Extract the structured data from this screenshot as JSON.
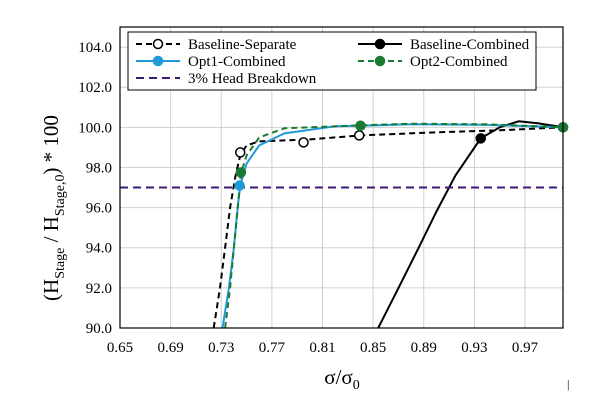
{
  "chart_data": {
    "type": "line",
    "xlim": [
      0.65,
      1.0
    ],
    "ylim": [
      90.0,
      105.0
    ],
    "x_ticks": [
      "0.65",
      "0.69",
      "0.73",
      "0.77",
      "0.81",
      "0.85",
      "0.89",
      "0.93",
      "0.97"
    ],
    "y_ticks": [
      "90.0",
      "92.0",
      "94.0",
      "96.0",
      "98.0",
      "100.0",
      "102.0",
      "104.0"
    ],
    "ylabel": {
      "main": "(H",
      "sub1": "Stage",
      "mid": " / H",
      "sub2": "Stage,0",
      "tail": ") * 100"
    },
    "xlabel": {
      "main": "σ/σ",
      "sub": "0"
    },
    "grid": true,
    "legend_position": "top",
    "series": [
      {
        "name": "Baseline-Separate",
        "color": "#000000",
        "dash": "6,4",
        "marker": "open-circle",
        "points": [
          [
            0.724,
            90.0
          ],
          [
            0.729,
            92.0
          ],
          [
            0.733,
            94.0
          ],
          [
            0.737,
            96.0
          ],
          [
            0.741,
            97.5
          ],
          [
            0.745,
            98.6
          ],
          [
            0.75,
            99.1
          ],
          [
            0.76,
            99.3
          ],
          [
            0.78,
            99.35
          ],
          [
            0.8,
            99.4
          ],
          [
            0.84,
            99.6
          ],
          [
            0.9,
            99.75
          ],
          [
            0.95,
            99.85
          ],
          [
            1.0,
            100.0
          ]
        ],
        "markers": [
          [
            0.745,
            98.75
          ],
          [
            0.795,
            99.25
          ],
          [
            0.839,
            99.6
          ]
        ]
      },
      {
        "name": "Baseline-Combined",
        "color": "#000000",
        "dash": "",
        "marker": "filled-circle",
        "points": [
          [
            0.854,
            90.0
          ],
          [
            0.87,
            92.0
          ],
          [
            0.886,
            94.0
          ],
          [
            0.9,
            95.8
          ],
          [
            0.915,
            97.6
          ],
          [
            0.935,
            99.45
          ],
          [
            0.95,
            100.0
          ],
          [
            0.965,
            100.3
          ],
          [
            0.98,
            100.2
          ],
          [
            1.0,
            100.0
          ]
        ],
        "markers": [
          [
            0.935,
            99.45
          ],
          [
            1.0,
            100.0
          ]
        ]
      },
      {
        "name": "Opt1-Combined",
        "color": "#1f9ad8",
        "dash": "",
        "marker": "filled-circle",
        "points": [
          [
            0.731,
            90.0
          ],
          [
            0.736,
            92.0
          ],
          [
            0.74,
            94.0
          ],
          [
            0.743,
            96.0
          ],
          [
            0.745,
            97.1
          ],
          [
            0.75,
            98.2
          ],
          [
            0.76,
            99.1
          ],
          [
            0.78,
            99.7
          ],
          [
            0.82,
            100.05
          ],
          [
            0.88,
            100.15
          ],
          [
            0.94,
            100.12
          ],
          [
            1.0,
            100.0
          ]
        ],
        "markers": [
          [
            0.7445,
            97.1
          ]
        ]
      },
      {
        "name": "Opt2-Combined",
        "color": "#1a7a32",
        "dash": "6,4",
        "marker": "filled-circle",
        "points": [
          [
            0.733,
            90.0
          ],
          [
            0.737,
            92.0
          ],
          [
            0.74,
            94.0
          ],
          [
            0.743,
            96.0
          ],
          [
            0.7455,
            97.7
          ],
          [
            0.75,
            98.6
          ],
          [
            0.76,
            99.5
          ],
          [
            0.78,
            99.95
          ],
          [
            0.84,
            100.1
          ],
          [
            0.88,
            100.18
          ],
          [
            0.94,
            100.15
          ],
          [
            1.0,
            100.0
          ]
        ],
        "markers": [
          [
            0.7455,
            97.75
          ],
          [
            0.84,
            100.08
          ],
          [
            1.0,
            100.0
          ]
        ]
      },
      {
        "name": "3% Head Breakdown",
        "color": "#3b1a7a",
        "dash": "8,5",
        "marker": "none",
        "points": [
          [
            0.65,
            97.0
          ],
          [
            1.0,
            97.0
          ]
        ],
        "markers": []
      }
    ]
  },
  "extra_text": {
    "corner_mark": "|"
  }
}
